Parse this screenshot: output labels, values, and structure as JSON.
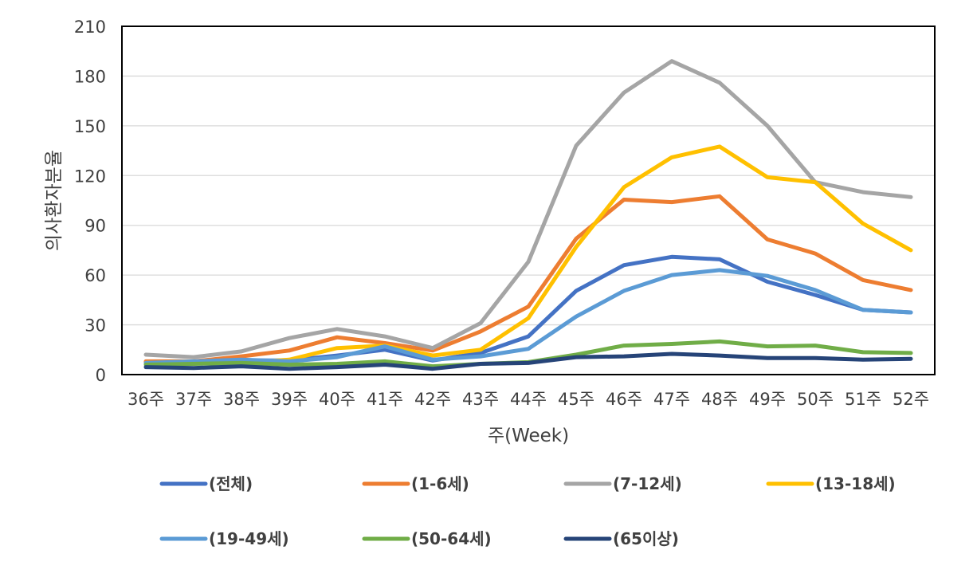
{
  "chart_data": {
    "type": "line",
    "title": "",
    "xlabel": "주(Week)",
    "ylabel": "의사환자분율",
    "ylim": [
      0,
      210
    ],
    "yticks": [
      0,
      30,
      60,
      90,
      120,
      150,
      180,
      210
    ],
    "categories": [
      "36주",
      "37주",
      "38주",
      "39주",
      "40주",
      "41주",
      "42주",
      "43주",
      "44주",
      "45주",
      "46주",
      "47주",
      "48주",
      "49주",
      "50주",
      "51주",
      "52주"
    ],
    "grid": true,
    "legend_position": "bottom",
    "series": [
      {
        "name": "(전체)",
        "color": "#4472C4",
        "values": [
          7.5,
          7,
          8.5,
          8.5,
          11.5,
          15,
          8.5,
          13,
          23,
          50.5,
          66,
          71,
          69.5,
          56,
          48,
          39,
          37.5
        ]
      },
      {
        "name": "(1-6세)",
        "color": "#ED7D31",
        "values": [
          8,
          8,
          11,
          14.5,
          22.5,
          19,
          14.5,
          26,
          41,
          82,
          105.5,
          104,
          107.5,
          81.5,
          73,
          57,
          51
        ]
      },
      {
        "name": "(7-12세)",
        "color": "#A5A5A5",
        "values": [
          12,
          10.5,
          14,
          22,
          27.5,
          23,
          16,
          31,
          68,
          138,
          170,
          189,
          176,
          150,
          116,
          110,
          107
        ]
      },
      {
        "name": "(13-18세)",
        "color": "#FFC000",
        "values": [
          7,
          8,
          7,
          9,
          16,
          17.5,
          11.5,
          15,
          34,
          77,
          113,
          131,
          137.5,
          119,
          116,
          91,
          75
        ]
      },
      {
        "name": "(19-49세)",
        "color": "#5B9BD5",
        "values": [
          7,
          8,
          9,
          8,
          10.5,
          17,
          9,
          11,
          15.5,
          35,
          50.5,
          60,
          63,
          59.5,
          51,
          39,
          37.5
        ]
      },
      {
        "name": "(50-64세)",
        "color": "#70AD47",
        "values": [
          6,
          6.5,
          7,
          6,
          6.5,
          8,
          5,
          6.5,
          7.5,
          12,
          17.5,
          18.5,
          20,
          17,
          17.5,
          13.5,
          13
        ]
      },
      {
        "name": "(65이상)",
        "color": "#264478",
        "values": [
          4.5,
          4,
          5,
          3.5,
          4.5,
          6,
          3.5,
          6.5,
          7,
          10.5,
          11,
          12.5,
          11.5,
          10,
          10,
          9,
          9.5
        ]
      }
    ]
  }
}
